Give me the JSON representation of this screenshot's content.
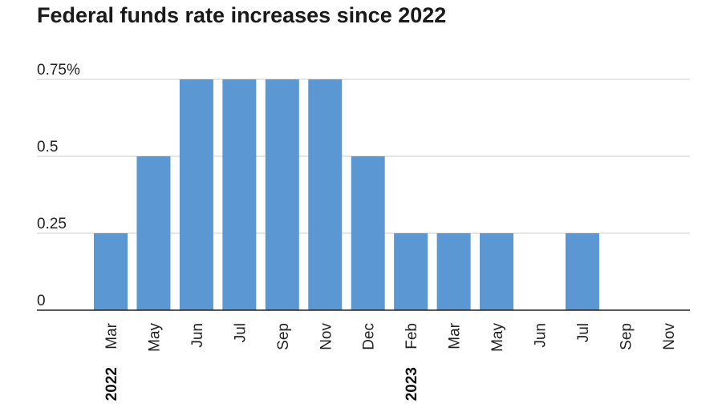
{
  "title": "Federal funds rate increases since 2022",
  "colors": {
    "bar": "#5b97d2",
    "grid": "#cccccc",
    "axis": "#222222"
  },
  "chart_data": {
    "type": "bar",
    "title": "Federal funds rate increases since 2022",
    "xlabel": "",
    "ylabel": "",
    "categories": [
      "Mar",
      "May",
      "Jun",
      "Jul",
      "Sep",
      "Nov",
      "Dec",
      "Feb",
      "Mar",
      "May",
      "Jun",
      "Jul",
      "Sep",
      "Nov"
    ],
    "values": [
      0.25,
      0.5,
      0.75,
      0.75,
      0.75,
      0.75,
      0.5,
      0.25,
      0.25,
      0.25,
      0,
      0.25,
      0,
      0
    ],
    "year_groups": [
      {
        "label": "2022",
        "start_index": 0
      },
      {
        "label": "2023",
        "start_index": 7
      }
    ],
    "y_ticks": [
      {
        "value": 0,
        "label": "0"
      },
      {
        "value": 0.25,
        "label": "0.25"
      },
      {
        "value": 0.5,
        "label": "0.5"
      },
      {
        "value": 0.75,
        "label": "0.75%"
      }
    ],
    "ylim": [
      0,
      0.75
    ],
    "grid": true,
    "legend": "none"
  }
}
